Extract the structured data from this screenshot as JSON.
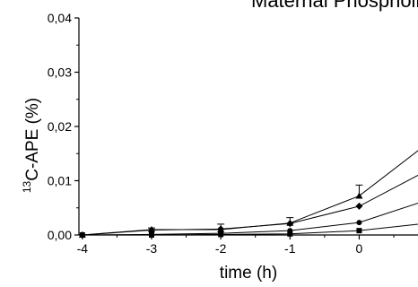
{
  "chart_data": {
    "type": "line",
    "title": "Maternal Phospholipids",
    "xlabel": "time (h)",
    "ylabel_sup": "13",
    "ylabel_main": "C-APE (%)",
    "x_ticks": [
      "-4",
      "-3",
      "-2",
      "-1",
      "0"
    ],
    "y_ticks": [
      "0,00",
      "0,01",
      "0,02",
      "0,03",
      "0,04"
    ],
    "xlim": [
      -4.05,
      0.85
    ],
    "ylim": [
      0,
      0.04
    ],
    "grid": false,
    "series": [
      {
        "marker": "triangle",
        "x": [
          -4,
          -3,
          -2,
          -1,
          0,
          1
        ],
        "y": [
          0,
          0.001,
          0.001,
          0.0022,
          0.0072,
          0.017
        ],
        "err": [
          0,
          0.0003,
          0.001,
          0.001,
          0.002,
          0
        ]
      },
      {
        "marker": "diamond",
        "x": [
          -4,
          -3,
          -2,
          -1,
          0,
          1
        ],
        "y": [
          0,
          0.0009,
          0.0011,
          0.0021,
          0.0053,
          0.012
        ],
        "err": [
          0,
          0,
          0,
          0,
          0,
          0
        ]
      },
      {
        "marker": "circle",
        "x": [
          -4,
          -3,
          -2,
          -1,
          0,
          1
        ],
        "y": [
          0,
          0.0001,
          0.0003,
          0.0008,
          0.0023,
          0.0065
        ],
        "err": [
          0,
          0,
          0,
          0,
          0,
          0
        ]
      },
      {
        "marker": "square",
        "x": [
          -4,
          -3,
          -2,
          -1,
          0,
          1
        ],
        "y": [
          0,
          0,
          0.0001,
          0.0002,
          0.0008,
          0.0022
        ],
        "err": [
          0,
          0,
          0,
          0,
          0,
          0
        ]
      }
    ]
  }
}
